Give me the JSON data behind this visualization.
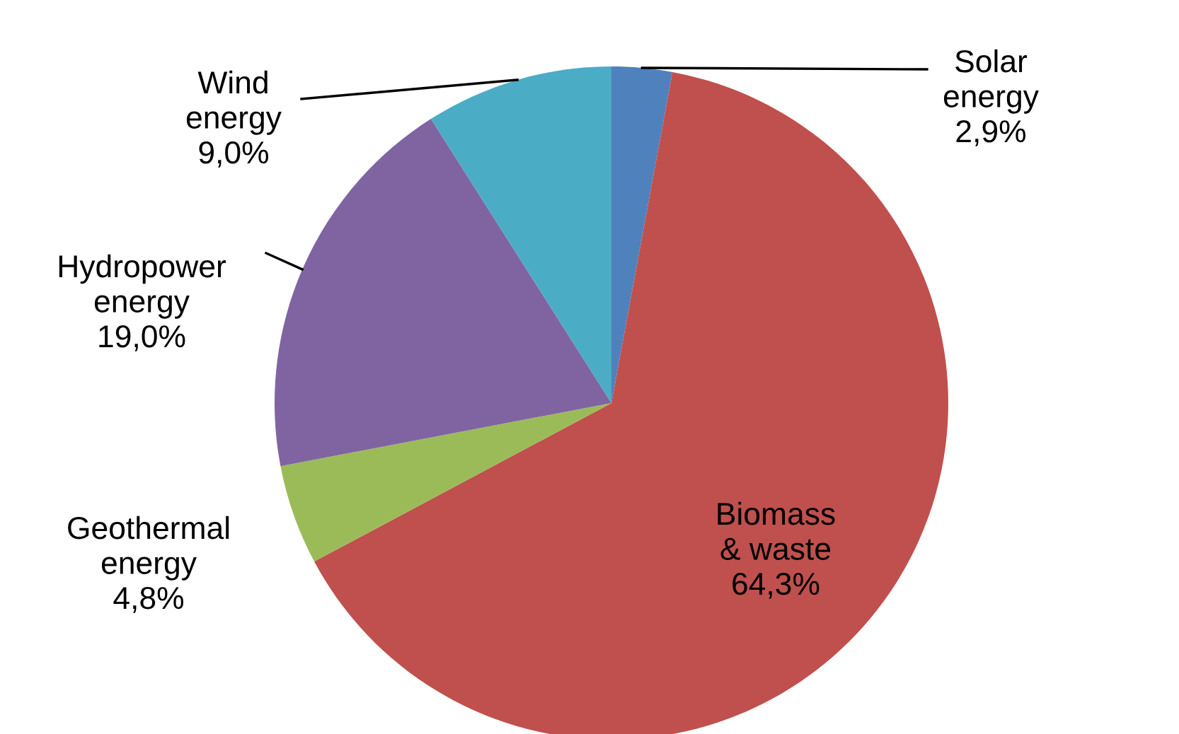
{
  "chart_data": {
    "type": "pie",
    "categories": [
      "Solar energy",
      "Biomass & waste",
      "Geothermal energy",
      "Hydropower energy",
      "Wind energy"
    ],
    "values": [
      2.9,
      64.3,
      4.8,
      19.0,
      9.0
    ],
    "value_labels": [
      "2,9%",
      "64,3%",
      "4,8%",
      "19,0%",
      "9,0%"
    ],
    "colors": [
      "#4f81bd",
      "#c0504d",
      "#9bbb59",
      "#8064a2",
      "#4bacc6"
    ]
  }
}
